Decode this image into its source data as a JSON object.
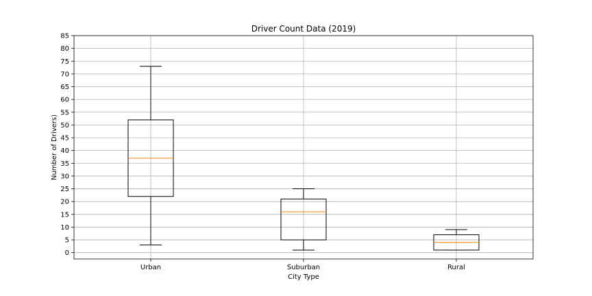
{
  "chart_data": {
    "type": "box",
    "title": "Driver Count Data (2019)",
    "xlabel": "City Type",
    "ylabel": "Number of Drivers)",
    "ylim": [
      -2.5,
      85
    ],
    "yticks": [
      0,
      5,
      10,
      15,
      20,
      25,
      30,
      35,
      40,
      45,
      50,
      55,
      60,
      65,
      70,
      75,
      80,
      85
    ],
    "categories": [
      "Urban",
      "Suburban",
      "Rural"
    ],
    "boxes": [
      {
        "name": "Urban",
        "min": 3,
        "q1": 22,
        "median": 37,
        "q3": 52,
        "max": 73
      },
      {
        "name": "Suburban",
        "min": 1,
        "q1": 5,
        "median": 16,
        "q3": 21,
        "max": 25
      },
      {
        "name": "Rural",
        "min": 1,
        "q1": 1,
        "median": 4,
        "q3": 7,
        "max": 9
      }
    ],
    "grid": true,
    "colors": {
      "box": "#000000",
      "median": "#ff7f0e",
      "grid": "#b0b0b0"
    }
  }
}
